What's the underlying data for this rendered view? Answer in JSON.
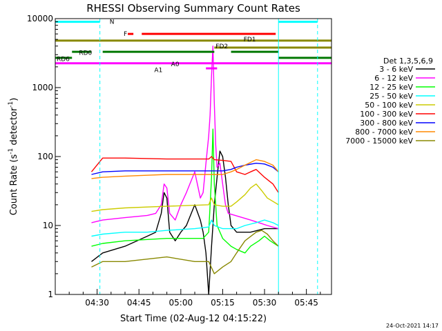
{
  "chart_data": {
    "type": "line",
    "title": "RHESSI Observing Summary Count Rates",
    "xlabel": "Start Time (02-Aug-12 04:15:22)",
    "ylabel_prefix": "Count Rate (s",
    "ylabel_exp1": "-1",
    "ylabel_mid": " detector",
    "ylabel_exp2": "-1",
    "ylabel_suffix": ")",
    "yscale": "log",
    "ylim": [
      1,
      10000
    ],
    "xlim_minutes": [
      0,
      99
    ],
    "x_tick_minutes": [
      15,
      30,
      45,
      60,
      75,
      90
    ],
    "x_tick_labels": [
      "04:30",
      "04:45",
      "05:00",
      "05:15",
      "05:30",
      "05:45"
    ],
    "y_tick_values": [
      1,
      10,
      100,
      1000,
      10000
    ],
    "y_tick_labels": [
      "1",
      "10",
      "100",
      "1000",
      "10000"
    ],
    "legend_title": "Det 1,3,5,6,9",
    "legend_position": "right",
    "timestamp": "24-Oct-2021 14:17",
    "gaps_minutes": [
      [
        0,
        13
      ],
      [
        80,
        83
      ],
      [
        96,
        99
      ]
    ],
    "series": [
      {
        "name": "3 - 6 keV",
        "color": "#000000",
        "points": [
          [
            13,
            3
          ],
          [
            17,
            4
          ],
          [
            25,
            5
          ],
          [
            33,
            7
          ],
          [
            36,
            8
          ],
          [
            38,
            15
          ],
          [
            39,
            30
          ],
          [
            40,
            25
          ],
          [
            41,
            8
          ],
          [
            43,
            6
          ],
          [
            45,
            8
          ],
          [
            47,
            10
          ],
          [
            50,
            20
          ],
          [
            52,
            12
          ],
          [
            53,
            8
          ],
          [
            54,
            4
          ],
          [
            55,
            1
          ],
          [
            56,
            5
          ],
          [
            57,
            20
          ],
          [
            58,
            50
          ],
          [
            59,
            120
          ],
          [
            60,
            100
          ],
          [
            61,
            50
          ],
          [
            62,
            20
          ],
          [
            63,
            10
          ],
          [
            65,
            8
          ],
          [
            70,
            8
          ],
          [
            75,
            9
          ],
          [
            80,
            9
          ]
        ]
      },
      {
        "name": "6 - 12 keV",
        "color": "#ff00ff",
        "points": [
          [
            13,
            11
          ],
          [
            17,
            12
          ],
          [
            25,
            13
          ],
          [
            33,
            14
          ],
          [
            36,
            15
          ],
          [
            38,
            20
          ],
          [
            39,
            40
          ],
          [
            40,
            35
          ],
          [
            41,
            15
          ],
          [
            43,
            12
          ],
          [
            45,
            20
          ],
          [
            47,
            30
          ],
          [
            50,
            60
          ],
          [
            52,
            25
          ],
          [
            53,
            30
          ],
          [
            54,
            80
          ],
          [
            55,
            200
          ],
          [
            55.5,
            400
          ],
          [
            56,
            1500
          ],
          [
            56.5,
            4000
          ],
          [
            57,
            600
          ],
          [
            57.5,
            150
          ],
          [
            58,
            70
          ],
          [
            59,
            80
          ],
          [
            60,
            40
          ],
          [
            61,
            20
          ],
          [
            62,
            15
          ],
          [
            70,
            12
          ],
          [
            73,
            11
          ],
          [
            76,
            10
          ],
          [
            80,
            9
          ]
        ]
      },
      {
        "name": "12 - 25 keV",
        "color": "#00ff00",
        "points": [
          [
            13,
            5
          ],
          [
            17,
            5.5
          ],
          [
            25,
            6
          ],
          [
            40,
            6.5
          ],
          [
            53,
            6.5
          ],
          [
            55,
            8
          ],
          [
            56,
            50
          ],
          [
            56.5,
            250
          ],
          [
            57,
            40
          ],
          [
            58,
            10
          ],
          [
            60,
            6.5
          ],
          [
            63,
            5
          ],
          [
            65,
            4.5
          ],
          [
            68,
            4
          ],
          [
            70,
            5
          ],
          [
            73,
            6
          ],
          [
            75,
            7
          ],
          [
            77,
            6
          ],
          [
            80,
            5
          ]
        ]
      },
      {
        "name": "25 - 50 keV",
        "color": "#00ffff",
        "points": [
          [
            13,
            7
          ],
          [
            17,
            7.5
          ],
          [
            25,
            8
          ],
          [
            33,
            8
          ],
          [
            40,
            8.5
          ],
          [
            50,
            9
          ],
          [
            55,
            9.5
          ],
          [
            56,
            12
          ],
          [
            57,
            10
          ],
          [
            60,
            9
          ],
          [
            65,
            9
          ],
          [
            68,
            10
          ],
          [
            72,
            11
          ],
          [
            75,
            12
          ],
          [
            78,
            11
          ],
          [
            80,
            10
          ]
        ]
      },
      {
        "name": "50 - 100 keV",
        "color": "#cccc00",
        "points": [
          [
            13,
            16
          ],
          [
            17,
            17
          ],
          [
            25,
            18
          ],
          [
            40,
            19
          ],
          [
            55,
            20
          ],
          [
            56,
            25
          ],
          [
            57,
            20
          ],
          [
            60,
            19
          ],
          [
            63,
            19
          ],
          [
            65,
            22
          ],
          [
            68,
            28
          ],
          [
            70,
            35
          ],
          [
            72,
            40
          ],
          [
            74,
            32
          ],
          [
            76,
            25
          ],
          [
            80,
            20
          ]
        ]
      },
      {
        "name": "100 - 300 keV",
        "color": "#ff0000",
        "points": [
          [
            13,
            60
          ],
          [
            17,
            95
          ],
          [
            25,
            95
          ],
          [
            40,
            92
          ],
          [
            55,
            92
          ],
          [
            56,
            100
          ],
          [
            57,
            90
          ],
          [
            60,
            88
          ],
          [
            63,
            85
          ],
          [
            65,
            60
          ],
          [
            68,
            55
          ],
          [
            70,
            60
          ],
          [
            72,
            65
          ],
          [
            75,
            50
          ],
          [
            78,
            40
          ],
          [
            80,
            30
          ]
        ]
      },
      {
        "name": "300 - 800 keV",
        "color": "#0000ff",
        "points": [
          [
            13,
            55
          ],
          [
            17,
            60
          ],
          [
            25,
            62
          ],
          [
            40,
            62
          ],
          [
            55,
            62
          ],
          [
            60,
            62
          ],
          [
            63,
            65
          ],
          [
            65,
            70
          ],
          [
            68,
            75
          ],
          [
            72,
            80
          ],
          [
            75,
            78
          ],
          [
            78,
            70
          ],
          [
            80,
            60
          ]
        ]
      },
      {
        "name": "800 - 7000 keV",
        "color": "#ff8800",
        "points": [
          [
            13,
            48
          ],
          [
            17,
            50
          ],
          [
            25,
            52
          ],
          [
            40,
            55
          ],
          [
            55,
            55
          ],
          [
            60,
            55
          ],
          [
            63,
            60
          ],
          [
            65,
            65
          ],
          [
            68,
            75
          ],
          [
            72,
            90
          ],
          [
            75,
            85
          ],
          [
            78,
            75
          ],
          [
            80,
            60
          ]
        ]
      },
      {
        "name": "7000 - 15000 keV",
        "color": "#888800",
        "points": [
          [
            13,
            2.5
          ],
          [
            17,
            3
          ],
          [
            25,
            3
          ],
          [
            40,
            3.5
          ],
          [
            50,
            3
          ],
          [
            55,
            3
          ],
          [
            57,
            2
          ],
          [
            60,
            2.5
          ],
          [
            63,
            3
          ],
          [
            65,
            4
          ],
          [
            68,
            6
          ],
          [
            72,
            8
          ],
          [
            74,
            8.5
          ],
          [
            76,
            7.5
          ],
          [
            78,
            6
          ],
          [
            80,
            5
          ]
        ]
      }
    ],
    "state_bars": [
      {
        "label": "N",
        "color": "#00ffff",
        "segments": [
          [
            0,
            16
          ],
          [
            80,
            94
          ]
        ]
      },
      {
        "label": "F",
        "color": "#ff0000",
        "segments": [
          [
            26,
            28
          ],
          [
            31,
            79
          ]
        ]
      },
      {
        "label": "FD1",
        "color": "#888800",
        "segments": [
          [
            0,
            99
          ]
        ]
      },
      {
        "label": "FD2",
        "color": "#888800",
        "segments": [
          [
            57,
            99
          ]
        ]
      },
      {
        "label": "RD0",
        "color": "#007700",
        "segments": [
          [
            6,
            13
          ],
          [
            17,
            57
          ],
          [
            63,
            80
          ]
        ]
      },
      {
        "label": "RD6",
        "color": "#007700",
        "segments": [
          [
            0,
            6
          ],
          [
            80,
            99
          ]
        ]
      },
      {
        "label": "A0",
        "color": "#ff00ff",
        "segments": [
          [
            0,
            99
          ]
        ]
      },
      {
        "label": "A1",
        "color": "#ff00ff",
        "segments": [
          [
            54,
            58
          ]
        ]
      }
    ],
    "vertical_markers": [
      {
        "minute": 0,
        "color": "#00ffff",
        "style": "solid"
      },
      {
        "minute": 16,
        "color": "#00ffff",
        "style": "dashed"
      },
      {
        "minute": 80,
        "color": "#00ffff",
        "style": "solid"
      },
      {
        "minute": 94,
        "color": "#00ffff",
        "style": "dashed"
      }
    ],
    "bar_labels": [
      {
        "text": "N",
        "color": "#00ffff",
        "minute": 19,
        "y": 9000
      },
      {
        "text": "F",
        "color": "#ff0000",
        "minute": 24,
        "y": 6000
      },
      {
        "text": "FD1",
        "color": "#888800",
        "minute": 67,
        "y": 5000
      },
      {
        "text": "FD2",
        "color": "#888800",
        "minute": 57,
        "y": 4000
      },
      {
        "text": "RD0",
        "color": "#007700",
        "minute": 8,
        "y": 3200
      },
      {
        "text": "RD6",
        "color": "#007700",
        "minute": 0,
        "y": 2600
      },
      {
        "text": "A0",
        "color": "#ff00ff",
        "minute": 41,
        "y": 2200
      },
      {
        "text": "A1",
        "color": "#ff00ff",
        "minute": 35,
        "y": 1800
      }
    ]
  }
}
